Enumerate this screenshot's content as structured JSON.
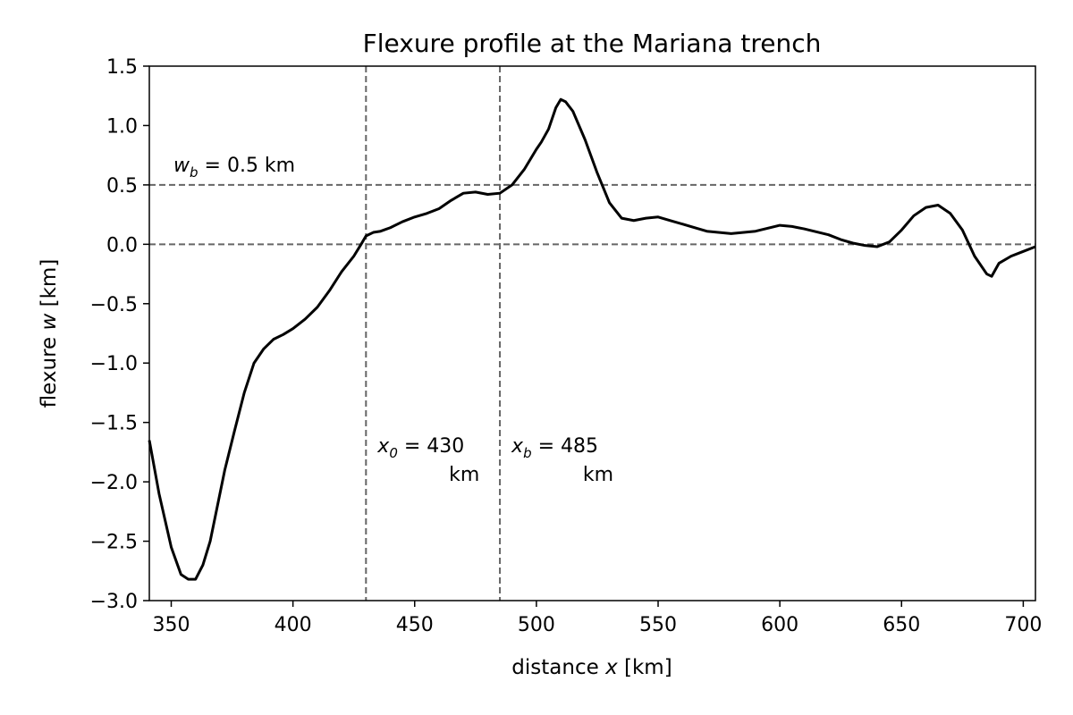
{
  "chart_data": {
    "type": "line",
    "title": "Flexure profile at the Mariana trench",
    "xlabel": {
      "prefix": "distance ",
      "var": "x",
      "suffix": " [km]"
    },
    "ylabel": {
      "prefix": "flexure ",
      "var": "w",
      "suffix": " [km]"
    },
    "xlim": [
      341,
      705
    ],
    "ylim": [
      -3.0,
      1.5
    ],
    "xticks": [
      "350",
      "400",
      "450",
      "500",
      "550",
      "600",
      "650",
      "700"
    ],
    "yticks": [
      "1.5",
      "1.0",
      "0.5",
      "0.0",
      "−0.5",
      "−1.0",
      "−1.5",
      "−2.0",
      "−2.5",
      "−3.0"
    ],
    "grid": false,
    "series": [
      {
        "color": "#000000",
        "x": [
          341,
          345,
          350,
          354,
          357,
          360,
          363,
          366,
          369,
          372,
          376,
          380,
          384,
          388,
          392,
          396,
          400,
          405,
          410,
          415,
          420,
          425,
          428,
          430,
          433,
          436,
          440,
          445,
          450,
          455,
          460,
          465,
          470,
          475,
          480,
          485,
          490,
          495,
          500,
          502,
          505,
          508,
          510,
          512,
          515,
          520,
          525,
          530,
          535,
          540,
          545,
          550,
          555,
          560,
          570,
          580,
          590,
          600,
          605,
          610,
          620,
          625,
          630,
          635,
          640,
          645,
          650,
          655,
          660,
          665,
          670,
          675,
          680,
          685,
          687,
          690,
          695,
          700,
          705
        ],
        "y": [
          -1.65,
          -2.1,
          -2.55,
          -2.78,
          -2.82,
          -2.82,
          -2.7,
          -2.5,
          -2.2,
          -1.9,
          -1.57,
          -1.25,
          -1.0,
          -0.88,
          -0.8,
          -0.76,
          -0.71,
          -0.63,
          -0.53,
          -0.39,
          -0.23,
          -0.1,
          0.0,
          0.07,
          0.1,
          0.11,
          0.14,
          0.19,
          0.23,
          0.26,
          0.3,
          0.37,
          0.43,
          0.44,
          0.42,
          0.43,
          0.5,
          0.63,
          0.8,
          0.86,
          0.97,
          1.15,
          1.22,
          1.2,
          1.12,
          0.88,
          0.6,
          0.35,
          0.22,
          0.2,
          0.22,
          0.23,
          0.2,
          0.17,
          0.11,
          0.09,
          0.11,
          0.16,
          0.15,
          0.13,
          0.08,
          0.04,
          0.01,
          -0.01,
          -0.02,
          0.02,
          0.12,
          0.24,
          0.31,
          0.33,
          0.26,
          0.12,
          -0.1,
          -0.25,
          -0.27,
          -0.16,
          -0.1,
          -0.06,
          -0.02
        ]
      }
    ],
    "reference_lines": [
      {
        "orientation": "horizontal",
        "value": 0.5,
        "label_var": "w",
        "label_sub": "b",
        "label_rest": " = 0.5 km"
      },
      {
        "orientation": "horizontal",
        "value": 0.0
      },
      {
        "orientation": "vertical",
        "value": 430,
        "label_var": "x",
        "label_sub": "0",
        "label_rest": " = 430",
        "label_unit": "km"
      },
      {
        "orientation": "vertical",
        "value": 485,
        "label_var": "x",
        "label_sub": "b",
        "label_rest": " = 485",
        "label_unit": "km"
      }
    ]
  }
}
